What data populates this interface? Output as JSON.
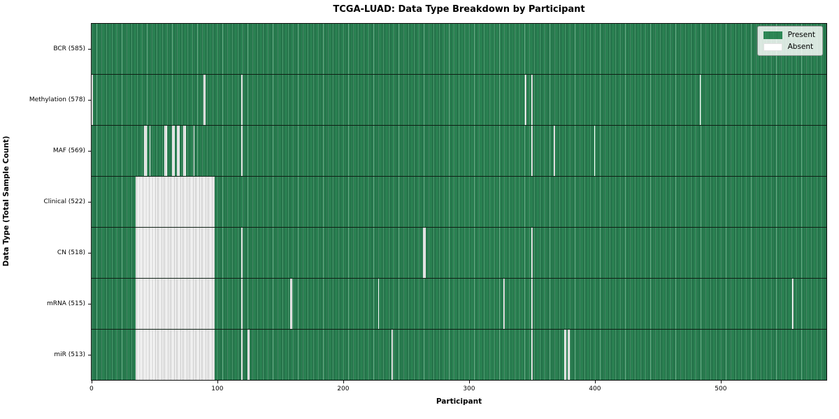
{
  "chart_data": {
    "type": "heatmap",
    "title": "TCGA-LUAD: Data Type Breakdown by Participant",
    "xlabel": "Participant",
    "ylabel": "Data Type (Total Sample Count)",
    "n_participants": 585,
    "x_ticks": [
      0,
      100,
      200,
      300,
      400,
      500
    ],
    "grid": false,
    "legend": {
      "position": "upper right",
      "entries": [
        {
          "label": "Present",
          "color": "#2e8b57"
        },
        {
          "label": "Absent",
          "color": "#ffffff"
        }
      ]
    },
    "colors": {
      "present": "#2e8b57",
      "present_edge": "#1f6140",
      "absent": "#ffffff",
      "absent_edge": "#bdbdbd",
      "spine": "#0c0c0c",
      "background": "#ffffff"
    },
    "y_tick_label_format": "{label} ({total})",
    "rows": [
      {
        "label": "BCR",
        "total": 585,
        "absent": []
      },
      {
        "label": "Methylation",
        "total": 578,
        "absent": [
          0,
          89,
          90,
          119,
          345,
          350,
          484
        ]
      },
      {
        "label": "MAF",
        "total": 569,
        "absent": [
          42,
          43,
          46,
          58,
          59,
          64,
          65,
          68,
          69,
          73,
          74,
          81,
          119,
          350,
          368,
          400
        ]
      },
      {
        "label": "Clinical",
        "total": 522,
        "absent": [
          35,
          36,
          37,
          38,
          39,
          40,
          41,
          42,
          43,
          44,
          45,
          46,
          47,
          48,
          49,
          50,
          51,
          52,
          53,
          54,
          55,
          56,
          57,
          58,
          59,
          60,
          61,
          62,
          63,
          64,
          65,
          66,
          67,
          68,
          69,
          70,
          71,
          72,
          73,
          74,
          75,
          76,
          77,
          78,
          79,
          80,
          81,
          82,
          83,
          84,
          85,
          86,
          87,
          88,
          89,
          90,
          91,
          92,
          93,
          94,
          95,
          96,
          97
        ]
      },
      {
        "label": "CN",
        "total": 518,
        "absent": [
          35,
          36,
          37,
          38,
          39,
          40,
          41,
          42,
          43,
          44,
          45,
          46,
          47,
          48,
          49,
          50,
          51,
          52,
          53,
          54,
          55,
          56,
          57,
          58,
          59,
          60,
          61,
          62,
          63,
          64,
          65,
          66,
          67,
          68,
          69,
          70,
          71,
          72,
          73,
          74,
          75,
          76,
          77,
          78,
          79,
          80,
          81,
          82,
          83,
          84,
          85,
          86,
          87,
          88,
          89,
          90,
          91,
          92,
          93,
          94,
          95,
          96,
          97,
          119,
          264,
          265,
          350
        ]
      },
      {
        "label": "mRNA",
        "total": 515,
        "absent": [
          35,
          36,
          37,
          38,
          39,
          40,
          41,
          42,
          43,
          44,
          45,
          46,
          47,
          48,
          49,
          50,
          51,
          52,
          53,
          54,
          55,
          56,
          57,
          58,
          59,
          60,
          61,
          62,
          63,
          64,
          65,
          66,
          67,
          68,
          69,
          70,
          71,
          72,
          73,
          74,
          75,
          76,
          77,
          78,
          79,
          80,
          81,
          82,
          83,
          84,
          85,
          86,
          87,
          88,
          89,
          90,
          91,
          92,
          93,
          94,
          95,
          96,
          97,
          119,
          158,
          159,
          228,
          328,
          350,
          558
        ]
      },
      {
        "label": "miR",
        "total": 513,
        "absent": [
          35,
          36,
          37,
          38,
          39,
          40,
          41,
          42,
          43,
          44,
          45,
          46,
          47,
          48,
          49,
          50,
          51,
          52,
          53,
          54,
          55,
          56,
          57,
          58,
          59,
          60,
          61,
          62,
          63,
          64,
          65,
          66,
          67,
          68,
          69,
          70,
          71,
          72,
          73,
          74,
          75,
          76,
          77,
          78,
          79,
          80,
          81,
          82,
          83,
          84,
          85,
          86,
          87,
          88,
          89,
          90,
          91,
          92,
          93,
          94,
          95,
          96,
          97,
          119,
          124,
          125,
          239,
          350,
          376,
          377,
          379,
          380
        ]
      }
    ]
  }
}
